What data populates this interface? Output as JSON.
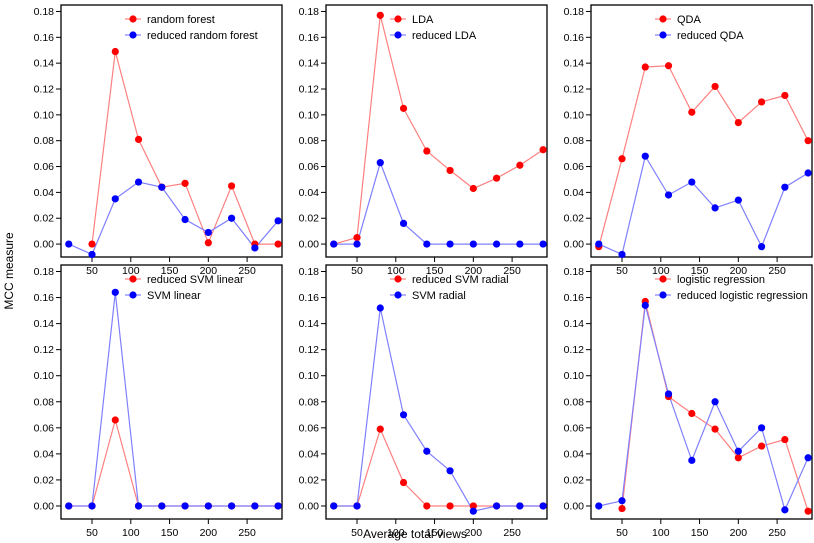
{
  "figure": {
    "ylabel": "MCC measure",
    "xlabel": "Average total views"
  },
  "colors": {
    "red_point": "#ff0000",
    "red_line": "#ff8080",
    "blue_point": "#0000ff",
    "blue_line": "#8080ff"
  },
  "chart_data": [
    {
      "type": "line",
      "legend_position": "top",
      "xlim": [
        10,
        295
      ],
      "ylim": [
        -0.01,
        0.185
      ],
      "x": [
        20,
        50,
        80,
        110,
        140,
        170,
        200,
        230,
        260,
        290
      ],
      "xticks": [
        50,
        100,
        150,
        200,
        250
      ],
      "xtick_labels": [
        "50",
        "100",
        "150",
        "200",
        "250"
      ],
      "yticks": [
        0,
        0.02,
        0.04,
        0.06,
        0.08,
        0.1,
        0.12,
        0.14,
        0.16,
        0.18
      ],
      "ytick_labels": [
        "0.00",
        "0.02",
        "0.04",
        "0.06",
        "0.08",
        "0.10",
        "0.12",
        "0.14",
        "0.16",
        "0.18"
      ],
      "series": [
        {
          "name": "random forest",
          "color": "red",
          "values": [
            null,
            0.0,
            0.149,
            0.081,
            0.044,
            0.047,
            0.001,
            0.045,
            0.0,
            0.0
          ]
        },
        {
          "name": "reduced random forest",
          "color": "blue",
          "values": [
            0.0,
            -0.008,
            0.035,
            0.048,
            0.044,
            0.019,
            0.009,
            0.02,
            -0.003,
            0.018
          ]
        }
      ]
    },
    {
      "type": "line",
      "legend_position": "top",
      "xlim": [
        10,
        295
      ],
      "ylim": [
        -0.01,
        0.185
      ],
      "x": [
        20,
        50,
        80,
        110,
        140,
        170,
        200,
        230,
        260,
        290
      ],
      "xticks": [
        50,
        100,
        150,
        200,
        250
      ],
      "xtick_labels": [
        "50",
        "100",
        "150",
        "200",
        "250"
      ],
      "yticks": [
        0,
        0.02,
        0.04,
        0.06,
        0.08,
        0.1,
        0.12,
        0.14,
        0.16,
        0.18
      ],
      "ytick_labels": [
        "0.00",
        "0.02",
        "0.04",
        "0.06",
        "0.08",
        "0.10",
        "0.12",
        "0.14",
        "0.16",
        "0.18"
      ],
      "series": [
        {
          "name": "LDA",
          "color": "red",
          "values": [
            0.0,
            0.005,
            0.177,
            0.105,
            0.072,
            0.057,
            0.043,
            0.051,
            0.061,
            0.073
          ]
        },
        {
          "name": "reduced LDA",
          "color": "blue",
          "values": [
            0.0,
            0.0,
            0.063,
            0.016,
            0.0,
            0.0,
            0.0,
            0.0,
            0.0,
            0.0
          ]
        }
      ]
    },
    {
      "type": "line",
      "legend_position": "top",
      "xlim": [
        10,
        295
      ],
      "ylim": [
        -0.01,
        0.185
      ],
      "x": [
        20,
        50,
        80,
        110,
        140,
        170,
        200,
        230,
        260,
        290
      ],
      "xticks": [
        50,
        100,
        150,
        200,
        250
      ],
      "xtick_labels": [
        "50",
        "100",
        "150",
        "200",
        "250"
      ],
      "yticks": [
        0,
        0.02,
        0.04,
        0.06,
        0.08,
        0.1,
        0.12,
        0.14,
        0.16,
        0.18
      ],
      "ytick_labels": [
        "0.00",
        "0.02",
        "0.04",
        "0.06",
        "0.08",
        "0.10",
        "0.12",
        "0.14",
        "0.16",
        "0.18"
      ],
      "series": [
        {
          "name": "QDA",
          "color": "red",
          "values": [
            -0.002,
            0.066,
            0.137,
            0.138,
            0.102,
            0.122,
            0.094,
            0.11,
            0.115,
            0.08
          ]
        },
        {
          "name": "reduced QDA",
          "color": "blue",
          "values": [
            0.0,
            -0.008,
            0.068,
            0.038,
            0.048,
            0.028,
            0.034,
            -0.002,
            0.044,
            0.055
          ]
        }
      ]
    },
    {
      "type": "line",
      "legend_position": "top",
      "xlim": [
        10,
        295
      ],
      "ylim": [
        -0.01,
        0.185
      ],
      "x": [
        20,
        50,
        80,
        110,
        140,
        170,
        200,
        230,
        260,
        290
      ],
      "xticks": [
        50,
        100,
        150,
        200,
        250
      ],
      "xtick_labels": [
        "50",
        "100",
        "150",
        "200",
        "250"
      ],
      "yticks": [
        0,
        0.02,
        0.04,
        0.06,
        0.08,
        0.1,
        0.12,
        0.14,
        0.16,
        0.18
      ],
      "ytick_labels": [
        "0.00",
        "0.02",
        "0.04",
        "0.06",
        "0.08",
        "0.10",
        "0.12",
        "0.14",
        "0.16",
        "0.18"
      ],
      "series": [
        {
          "name": "reduced SVM linear",
          "color": "red",
          "values": [
            0.0,
            0.0,
            0.066,
            0.0,
            0.0,
            0.0,
            0.0,
            0.0,
            0.0,
            0.0
          ]
        },
        {
          "name": "SVM linear",
          "color": "blue",
          "values": [
            0.0,
            0.0,
            0.164,
            0.0,
            0.0,
            0.0,
            0.0,
            0.0,
            0.0,
            0.0
          ]
        }
      ]
    },
    {
      "type": "line",
      "legend_position": "top",
      "xlim": [
        10,
        295
      ],
      "ylim": [
        -0.01,
        0.185
      ],
      "x": [
        20,
        50,
        80,
        110,
        140,
        170,
        200,
        230,
        260,
        290
      ],
      "xticks": [
        50,
        100,
        150,
        200,
        250
      ],
      "xtick_labels": [
        "50",
        "100",
        "150",
        "200",
        "250"
      ],
      "yticks": [
        0,
        0.02,
        0.04,
        0.06,
        0.08,
        0.1,
        0.12,
        0.14,
        0.16,
        0.18
      ],
      "ytick_labels": [
        "0.00",
        "0.02",
        "0.04",
        "0.06",
        "0.08",
        "0.10",
        "0.12",
        "0.14",
        "0.16",
        "0.18"
      ],
      "series": [
        {
          "name": "reduced SVM radial",
          "color": "red",
          "values": [
            0.0,
            0.0,
            0.059,
            0.018,
            0.0,
            0.0,
            0.0,
            0.0,
            0.0,
            0.0
          ]
        },
        {
          "name": "SVM radial",
          "color": "blue",
          "values": [
            0.0,
            0.0,
            0.152,
            0.07,
            0.042,
            0.027,
            -0.004,
            0.0,
            0.0,
            0.0
          ]
        }
      ]
    },
    {
      "type": "line",
      "legend_position": "top",
      "xlim": [
        10,
        295
      ],
      "ylim": [
        -0.01,
        0.185
      ],
      "x": [
        20,
        50,
        80,
        110,
        140,
        170,
        200,
        230,
        260,
        290
      ],
      "xticks": [
        50,
        100,
        150,
        200,
        250
      ],
      "xtick_labels": [
        "50",
        "100",
        "150",
        "200",
        "250"
      ],
      "yticks": [
        0,
        0.02,
        0.04,
        0.06,
        0.08,
        0.1,
        0.12,
        0.14,
        0.16,
        0.18
      ],
      "ytick_labels": [
        "0.00",
        "0.02",
        "0.04",
        "0.06",
        "0.08",
        "0.10",
        "0.12",
        "0.14",
        "0.16",
        "0.18"
      ],
      "series": [
        {
          "name": "logistic regression",
          "color": "red",
          "values": [
            null,
            -0.002,
            0.157,
            0.084,
            0.071,
            0.059,
            0.037,
            0.046,
            0.051,
            -0.004
          ]
        },
        {
          "name": "reduced logistic regression",
          "color": "blue",
          "values": [
            0.0,
            0.004,
            0.154,
            0.086,
            0.035,
            0.08,
            0.042,
            0.06,
            -0.003,
            0.037
          ]
        }
      ]
    }
  ]
}
